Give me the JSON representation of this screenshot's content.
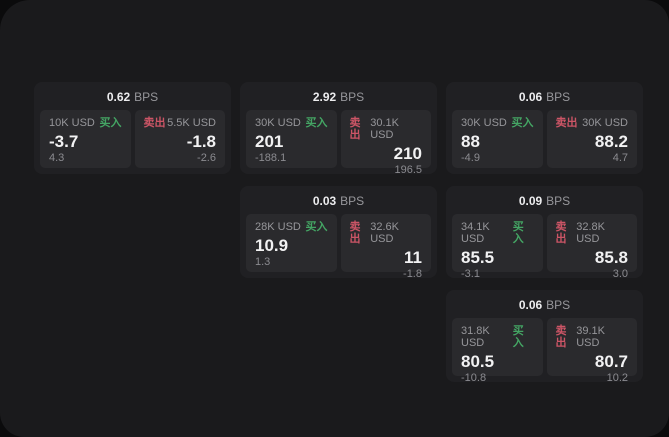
{
  "labels": {
    "bps_unit": "BPS",
    "buy": "买入",
    "sell": "卖出"
  },
  "colors": {
    "buy_green": "#44a564",
    "sell_red": "#cc5566",
    "window_bg": "#1a1a1c",
    "card_bg": "#202023",
    "panel_bg": "#2a2a2d"
  },
  "cards": [
    {
      "col": 0,
      "row": 0,
      "bps": "0.62",
      "buy": {
        "amount": "10K USD",
        "main": "-3.7",
        "sub": "4.3"
      },
      "sell": {
        "amount": "5.5K USD",
        "main": "-1.8",
        "sub": "-2.6"
      }
    },
    {
      "col": 1,
      "row": 0,
      "bps": "2.92",
      "buy": {
        "amount": "30K USD",
        "main": "201",
        "sub": "-188.1"
      },
      "sell": {
        "amount": "30.1K USD",
        "main": "210",
        "sub": "196.5"
      }
    },
    {
      "col": 2,
      "row": 0,
      "bps": "0.06",
      "buy": {
        "amount": "30K USD",
        "main": "88",
        "sub": "-4.9"
      },
      "sell": {
        "amount": "30K USD",
        "main": "88.2",
        "sub": "4.7"
      }
    },
    {
      "col": 1,
      "row": 1,
      "bps": "0.03",
      "buy": {
        "amount": "28K USD",
        "main": "10.9",
        "sub": "1.3"
      },
      "sell": {
        "amount": "32.6K USD",
        "main": "11",
        "sub": "-1.8"
      }
    },
    {
      "col": 2,
      "row": 1,
      "bps": "0.09",
      "buy": {
        "amount": "34.1K USD",
        "main": "85.5",
        "sub": "-3.1"
      },
      "sell": {
        "amount": "32.8K USD",
        "main": "85.8",
        "sub": "3.0"
      }
    },
    {
      "col": 2,
      "row": 2,
      "bps": "0.06",
      "buy": {
        "amount": "31.8K USD",
        "main": "80.5",
        "sub": "-10.8"
      },
      "sell": {
        "amount": "39.1K USD",
        "main": "80.7",
        "sub": "10.2"
      }
    }
  ]
}
